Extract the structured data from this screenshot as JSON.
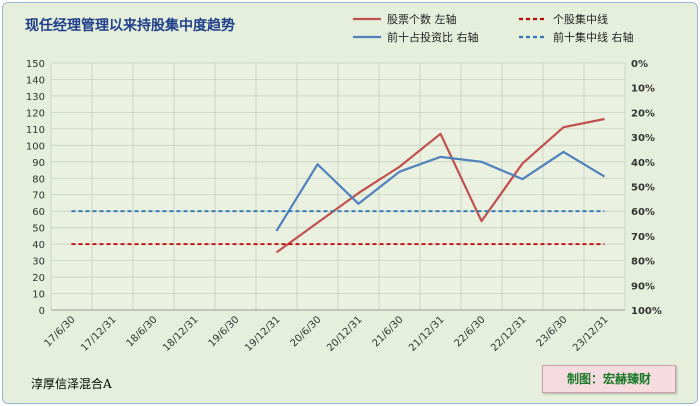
{
  "chart_data": {
    "type": "line",
    "title": "现任经理管理以来持股集中度趋势",
    "categories": [
      "17/6/30",
      "17/12/31",
      "18/6/30",
      "18/12/31",
      "19/6/30",
      "19/12/31",
      "20/6/30",
      "20/12/31",
      "21/6/30",
      "21/12/31",
      "22/6/30",
      "22/12/31",
      "23/6/30",
      "23/12/31"
    ],
    "left_axis": {
      "range": [
        0,
        150
      ],
      "step": 10,
      "ticks": [
        "0",
        "10",
        "20",
        "30",
        "40",
        "50",
        "60",
        "70",
        "80",
        "90",
        "100",
        "110",
        "120",
        "130",
        "140",
        "150"
      ]
    },
    "right_axis": {
      "range": [
        0,
        1
      ],
      "reversed": true,
      "ticks": [
        "0%",
        "10%",
        "20%",
        "30%",
        "40%",
        "50%",
        "60%",
        "70%",
        "80%",
        "90%",
        "100%"
      ]
    },
    "series": [
      {
        "name": "股票个数 左轴",
        "axis": "left",
        "style": "solid",
        "color": "#c0504d",
        "values": [
          null,
          null,
          null,
          null,
          null,
          35,
          53,
          71,
          87,
          107,
          54,
          89,
          111,
          116
        ]
      },
      {
        "name": "前十占投资比 右轴",
        "axis": "right",
        "style": "solid",
        "color": "#4f81bd",
        "values": [
          null,
          null,
          null,
          null,
          null,
          0.68,
          0.41,
          0.57,
          0.44,
          0.38,
          0.4,
          0.47,
          0.36,
          0.46
        ]
      },
      {
        "name": "个股集中线",
        "axis": "left",
        "style": "dashed",
        "color": "#c00000",
        "values": [
          40,
          40,
          40,
          40,
          40,
          40,
          40,
          40,
          40,
          40,
          40,
          40,
          40,
          40
        ]
      },
      {
        "name": "前十集中线 右轴",
        "axis": "right",
        "style": "dashed",
        "color": "#2e75b6",
        "values": [
          0.6,
          0.6,
          0.6,
          0.6,
          0.6,
          0.6,
          0.6,
          0.6,
          0.6,
          0.6,
          0.6,
          0.6,
          0.6,
          0.6
        ]
      }
    ],
    "grid": true,
    "legend_position": "top-right"
  },
  "footer": {
    "fund_name": "淳厚信泽混合A",
    "credit": "制图：宏赫臻财"
  }
}
